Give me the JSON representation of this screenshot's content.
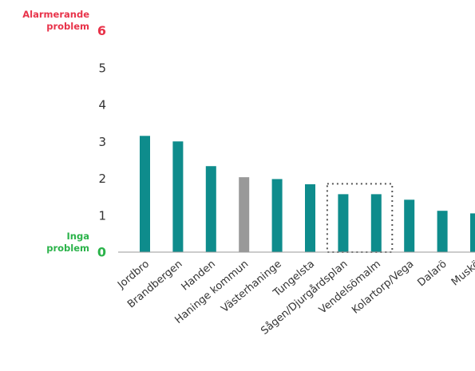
{
  "chart_data": {
    "type": "bar",
    "title": "",
    "xlabel": "",
    "ylabel": "",
    "ylim": [
      0,
      6
    ],
    "yticks": [
      0,
      1,
      2,
      3,
      4,
      5,
      6
    ],
    "grid": false,
    "annotations": {
      "top_label": [
        "Alarmerande",
        "problem"
      ],
      "bottom_label": [
        "Inga",
        "problem"
      ]
    },
    "categories": [
      "Jordbro",
      "Brandbergen",
      "Handen",
      "Haninge kommun",
      "Västerhaninge",
      "Tungelsta",
      "Sågen/Djurgårdsplan",
      "Vendelsömalm",
      "Kolartorp/Vega",
      "Dalarö",
      "Muskö"
    ],
    "values": [
      3.15,
      3.0,
      2.33,
      2.03,
      1.98,
      1.84,
      1.57,
      1.57,
      1.42,
      1.12,
      1.05
    ],
    "highlight_group": [
      "Sågen/Djurgårdsplan",
      "Vendelsömalm"
    ],
    "colors": {
      "bar": "#0e8c8c",
      "average_bar": "#999999",
      "high": "#e8334a",
      "low": "#2bb34a",
      "axis": "#999999",
      "text": "#333333",
      "highlight_box": "#555555"
    },
    "average_category": "Haninge kommun"
  }
}
